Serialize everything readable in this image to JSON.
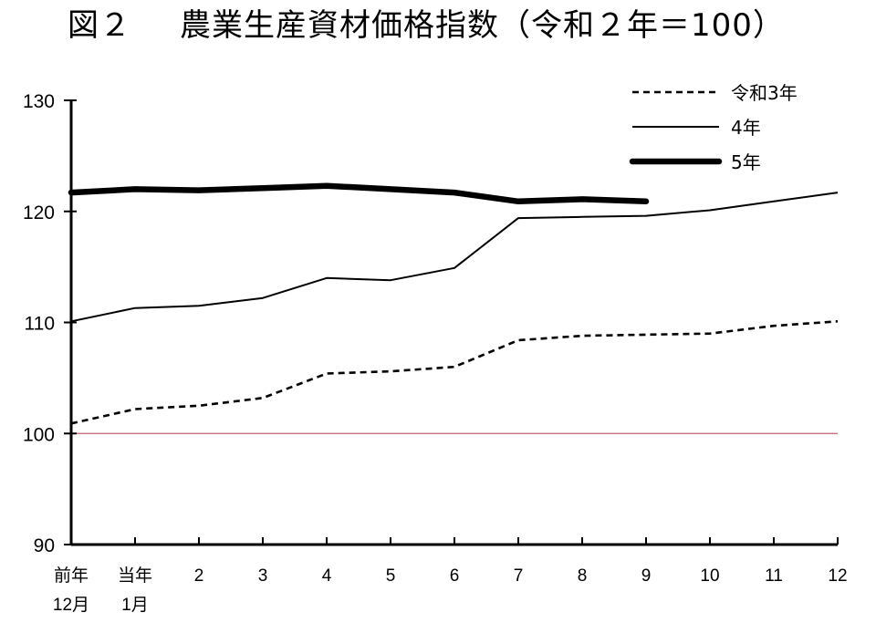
{
  "title": {
    "figure_no": "図２",
    "text": "農業生産資材価格指数（令和２年＝100）"
  },
  "chart_data": {
    "type": "line",
    "title": "農業生産資材価格指数（令和２年＝100）",
    "x_labels": [
      [
        "前年",
        "12月"
      ],
      [
        "当年",
        "1月"
      ],
      [
        "2"
      ],
      [
        "3"
      ],
      [
        "4"
      ],
      [
        "5"
      ],
      [
        "6"
      ],
      [
        "7"
      ],
      [
        "8"
      ],
      [
        "9"
      ],
      [
        "10"
      ],
      [
        "11"
      ],
      [
        "12"
      ]
    ],
    "ylim": [
      90,
      130
    ],
    "yticks": [
      "90",
      "100",
      "110",
      "120",
      "130"
    ],
    "reference_line": {
      "value": 100,
      "color": "#c06070"
    },
    "legend_position": "top-right",
    "series": [
      {
        "name": "令和3年",
        "style": "dashed",
        "color": "#000000",
        "values": [
          100.9,
          102.2,
          102.5,
          103.2,
          105.4,
          105.6,
          106.0,
          108.4,
          108.8,
          108.9,
          109.0,
          109.7,
          110.1
        ]
      },
      {
        "name": "4年",
        "style": "thin",
        "color": "#000000",
        "values": [
          110.1,
          111.3,
          111.5,
          112.2,
          114.0,
          113.8,
          114.9,
          119.4,
          119.5,
          119.6,
          120.1,
          120.9,
          121.7
        ]
      },
      {
        "name": "5年",
        "style": "bold",
        "color": "#000000",
        "values": [
          121.7,
          122.0,
          121.9,
          122.1,
          122.3,
          122.0,
          121.7,
          120.9,
          121.1,
          120.9
        ]
      }
    ]
  }
}
